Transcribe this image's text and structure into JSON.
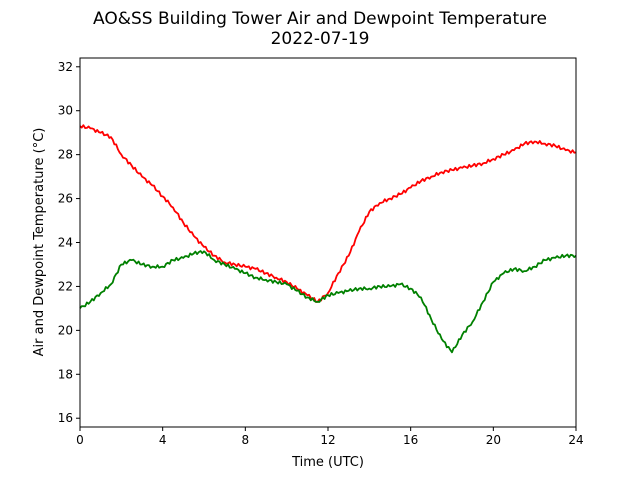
{
  "chart_data": {
    "type": "line",
    "title": "AO&SS Building Tower Air and Dewpoint Temperature",
    "subtitle": "2022-07-19",
    "xlabel": "Time (UTC)",
    "ylabel": "Air and Dewpoint Temperature (°C)",
    "xlim": [
      0,
      24
    ],
    "ylim": [
      15.6,
      32.4
    ],
    "xticks": [
      0,
      4,
      8,
      12,
      16,
      20,
      24
    ],
    "yticks": [
      16,
      18,
      20,
      22,
      24,
      26,
      28,
      30,
      32
    ],
    "grid": false,
    "legend": "none",
    "series": [
      {
        "color": "#ff0000",
        "x": [
          0,
          0.5,
          1,
          1.5,
          2,
          2.5,
          3,
          3.5,
          4,
          4.5,
          5,
          5.5,
          6,
          6.5,
          7,
          7.5,
          8,
          8.5,
          9,
          9.5,
          10,
          10.5,
          11,
          11.5,
          12,
          12.5,
          13,
          13.5,
          14,
          14.5,
          15,
          15.5,
          16,
          16.5,
          17,
          17.5,
          18,
          18.5,
          19,
          19.5,
          20,
          20.5,
          21,
          21.5,
          22,
          22.5,
          23,
          23.5,
          24
        ],
        "y": [
          29.3,
          29.2,
          29.0,
          28.8,
          28.0,
          27.5,
          27.0,
          26.6,
          26.1,
          25.6,
          24.9,
          24.3,
          23.8,
          23.4,
          23.1,
          23.0,
          22.9,
          22.8,
          22.6,
          22.4,
          22.2,
          21.9,
          21.6,
          21.3,
          21.7,
          22.6,
          23.4,
          24.5,
          25.4,
          25.8,
          26.0,
          26.2,
          26.5,
          26.8,
          27.0,
          27.2,
          27.3,
          27.4,
          27.5,
          27.6,
          27.8,
          28.0,
          28.2,
          28.5,
          28.6,
          28.5,
          28.4,
          28.2,
          28.1
        ]
      },
      {
        "color": "#008000",
        "x": [
          0,
          0.5,
          1,
          1.5,
          2,
          2.5,
          3,
          3.5,
          4,
          4.5,
          5,
          5.5,
          6,
          6.5,
          7,
          7.5,
          8,
          8.5,
          9,
          9.5,
          10,
          10.5,
          11,
          11.5,
          12,
          12.5,
          13,
          13.5,
          14,
          14.5,
          15,
          15.5,
          16,
          16.5,
          17,
          17.5,
          18,
          18.5,
          19,
          19.5,
          20,
          20.5,
          21,
          21.5,
          22,
          22.5,
          23,
          23.5,
          24
        ],
        "y": [
          21.0,
          21.3,
          21.7,
          22.1,
          23.0,
          23.2,
          23.0,
          22.9,
          22.9,
          23.2,
          23.3,
          23.5,
          23.6,
          23.2,
          23.0,
          22.8,
          22.6,
          22.4,
          22.3,
          22.2,
          22.1,
          21.8,
          21.5,
          21.3,
          21.6,
          21.7,
          21.8,
          21.9,
          21.9,
          22.0,
          22.0,
          22.1,
          21.9,
          21.5,
          20.5,
          19.6,
          19.0,
          19.8,
          20.4,
          21.3,
          22.2,
          22.6,
          22.8,
          22.7,
          22.9,
          23.2,
          23.3,
          23.4,
          23.4
        ]
      }
    ]
  }
}
